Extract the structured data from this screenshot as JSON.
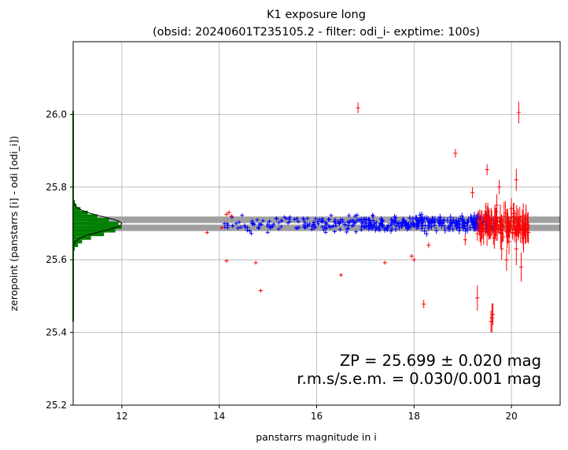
{
  "chart_data": {
    "type": "scatter",
    "title": "K1 exposure long",
    "subtitle": "(obsid: 20240601T235105.2 - filter: odi_i- exptime: 100s)",
    "xlabel": "panstarrs magnitude in i",
    "ylabel": "zeropoint (panstarrs [i] - odi [odi_i])",
    "xlim": [
      11.0,
      21.0
    ],
    "ylim": [
      25.2,
      26.2
    ],
    "xticks": [
      "12",
      "14",
      "16",
      "18",
      "20"
    ],
    "yticks": [
      "25.2",
      "25.4",
      "25.6",
      "25.8",
      "26.0"
    ],
    "grid": true,
    "zeropoint_band": {
      "center": 25.699,
      "half_width": 0.02
    },
    "annotation_zp": "ZP = 25.699 ± 0.020 mag",
    "annotation_rms": "r.m.s/s.e.m. = 0.030/0.001 mag",
    "colors": {
      "inliers": "#0000ff",
      "outliers": "#ff0000",
      "histogram": "#008000",
      "band": "#a0a0a0"
    },
    "histogram": {
      "bins": [
        {
          "y": 25.63,
          "count": 0.2
        },
        {
          "y": 25.64,
          "count": 0.6
        },
        {
          "y": 25.65,
          "count": 1.1
        },
        {
          "y": 25.66,
          "count": 2.2
        },
        {
          "y": 25.67,
          "count": 3.8
        },
        {
          "y": 25.68,
          "count": 5.2
        },
        {
          "y": 25.69,
          "count": 6.0
        },
        {
          "y": 25.7,
          "count": 5.6
        },
        {
          "y": 25.71,
          "count": 4.4
        },
        {
          "y": 25.72,
          "count": 3.0
        },
        {
          "y": 25.73,
          "count": 1.8
        },
        {
          "y": 25.74,
          "count": 0.9
        },
        {
          "y": 25.75,
          "count": 0.4
        },
        {
          "y": 25.76,
          "count": 0.2
        }
      ],
      "max_count": 6.0,
      "max_mag": 12.0
    },
    "outlier_points": [
      {
        "x": 13.75,
        "y": 25.675,
        "err": 0.003
      },
      {
        "x": 14.05,
        "y": 25.688,
        "err": 0.003
      },
      {
        "x": 14.15,
        "y": 25.725,
        "err": 0.003
      },
      {
        "x": 14.2,
        "y": 25.73,
        "err": 0.003
      },
      {
        "x": 14.25,
        "y": 25.72,
        "err": 0.003
      },
      {
        "x": 14.15,
        "y": 25.597,
        "err": 0.004
      },
      {
        "x": 14.75,
        "y": 25.592,
        "err": 0.004
      },
      {
        "x": 14.85,
        "y": 25.515,
        "err": 0.004
      },
      {
        "x": 16.5,
        "y": 25.558,
        "err": 0.005
      },
      {
        "x": 16.85,
        "y": 26.018,
        "err": 0.015
      },
      {
        "x": 17.4,
        "y": 25.592,
        "err": 0.005
      },
      {
        "x": 17.95,
        "y": 25.61,
        "err": 0.006
      },
      {
        "x": 18.0,
        "y": 25.6,
        "err": 0.006
      },
      {
        "x": 18.2,
        "y": 25.478,
        "err": 0.012
      },
      {
        "x": 18.3,
        "y": 25.64,
        "err": 0.008
      },
      {
        "x": 18.85,
        "y": 25.893,
        "err": 0.012
      },
      {
        "x": 19.05,
        "y": 25.655,
        "err": 0.015
      },
      {
        "x": 19.2,
        "y": 25.785,
        "err": 0.015
      },
      {
        "x": 19.3,
        "y": 25.495,
        "err": 0.035
      },
      {
        "x": 19.5,
        "y": 25.848,
        "err": 0.015
      },
      {
        "x": 19.6,
        "y": 25.44,
        "err": 0.04
      },
      {
        "x": 19.62,
        "y": 25.45,
        "err": 0.03
      },
      {
        "x": 19.58,
        "y": 25.43,
        "err": 0.03
      },
      {
        "x": 19.65,
        "y": 25.66,
        "err": 0.03
      },
      {
        "x": 19.75,
        "y": 25.8,
        "err": 0.02
      },
      {
        "x": 19.85,
        "y": 25.72,
        "err": 0.04
      },
      {
        "x": 19.9,
        "y": 25.6,
        "err": 0.03
      },
      {
        "x": 20.1,
        "y": 25.82,
        "err": 0.03
      },
      {
        "x": 20.15,
        "y": 26.005,
        "err": 0.03
      },
      {
        "x": 20.2,
        "y": 25.58,
        "err": 0.04
      },
      {
        "x": 20.25,
        "y": 25.66,
        "err": 0.04
      },
      {
        "x": 20.1,
        "y": 25.63,
        "err": 0.045
      },
      {
        "x": 20.3,
        "y": 25.7,
        "err": 0.04
      },
      {
        "x": 20.35,
        "y": 25.675,
        "err": 0.03
      },
      {
        "x": 20.0,
        "y": 25.74,
        "err": 0.03
      },
      {
        "x": 19.95,
        "y": 25.65,
        "err": 0.035
      },
      {
        "x": 19.7,
        "y": 25.75,
        "err": 0.03
      },
      {
        "x": 19.8,
        "y": 25.63,
        "err": 0.03
      }
    ],
    "inlier_points": {
      "x_range": [
        14.1,
        19.7
      ],
      "y_center": 25.699,
      "y_spread": 0.045,
      "count": 420
    },
    "dense_outlier_points": {
      "x_range": [
        19.3,
        20.35
      ],
      "y_center": 25.695,
      "y_spread": 0.07,
      "count": 110
    }
  }
}
